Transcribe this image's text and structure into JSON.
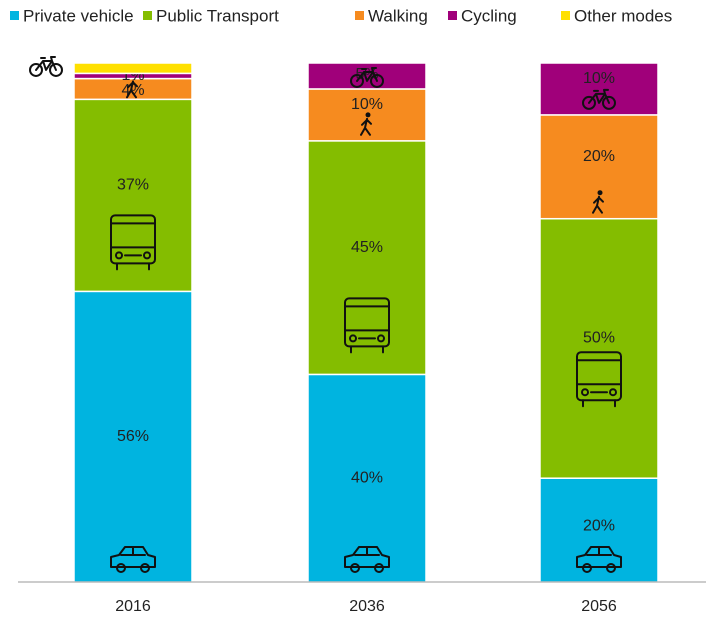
{
  "chart_data": {
    "type": "stacked_bar",
    "categories": [
      "2016",
      "2036",
      "2056"
    ],
    "series": [
      {
        "name": "Private vehicle",
        "color": "#00b4e0",
        "values": [
          56,
          40,
          20
        ],
        "value_labels": [
          "56%",
          "40%",
          "20%"
        ]
      },
      {
        "name": "Public Transport",
        "color": "#84bd00",
        "values": [
          37,
          45,
          50
        ],
        "value_labels": [
          "37%",
          "45%",
          "50%"
        ]
      },
      {
        "name": "Walking",
        "color": "#f68b1f",
        "values": [
          4,
          10,
          20
        ],
        "value_labels": [
          "4%",
          "10%",
          "20%"
        ]
      },
      {
        "name": "Cycling",
        "color": "#a0007a",
        "values": [
          1,
          5,
          10
        ],
        "value_labels": [
          "1%",
          "5%",
          "10%"
        ]
      },
      {
        "name": "Other modes",
        "color": "#ffe000",
        "values": [
          2,
          0,
          0
        ],
        "value_labels": [
          null,
          null,
          null
        ]
      }
    ],
    "ylim": [
      0,
      100
    ],
    "legend": "top"
  }
}
